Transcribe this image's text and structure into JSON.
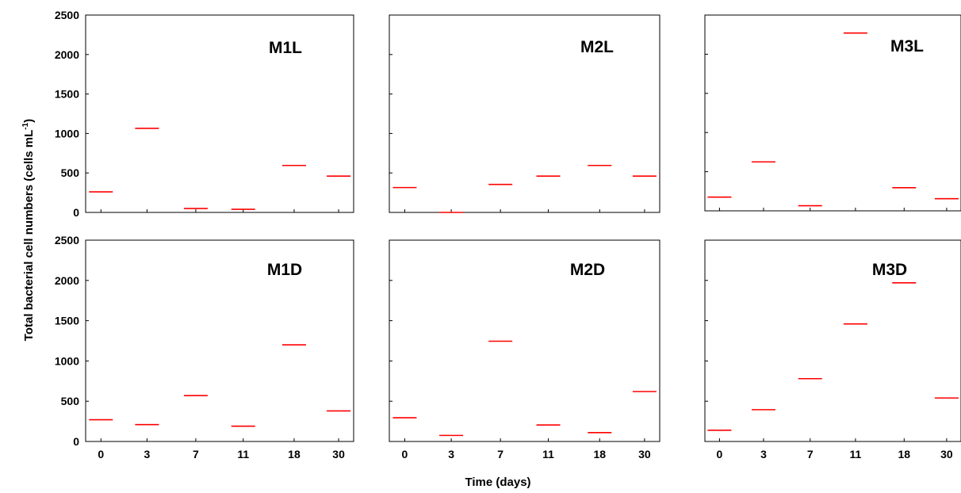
{
  "figure": {
    "ylabel": "Total bacterial cell numbers (cells mL",
    "ylabel_exp": "-1",
    "ylabel_close": ")",
    "xlabel": "Time (days)"
  },
  "colors": {
    "mark": "#ff0000",
    "axis": "#000000"
  },
  "chart_data": [
    {
      "type": "scatter",
      "title": "M1L",
      "categories": [
        "0",
        "3",
        "7",
        "11",
        "18",
        "30"
      ],
      "values": [
        260,
        1065,
        50,
        40,
        595,
        460
      ],
      "ylim": [
        0,
        2500
      ],
      "yticks": [
        "0",
        "500",
        "1000",
        "1500",
        "2000",
        "2500"
      ],
      "show_ytick_labels": true,
      "show_xtick_labels": false,
      "marker": "horizontal-line"
    },
    {
      "type": "scatter",
      "title": "M2L",
      "categories": [
        "0",
        "3",
        "7",
        "11",
        "18",
        "30"
      ],
      "values": [
        315,
        0,
        355,
        460,
        595,
        460
      ],
      "ylim": [
        0,
        2500
      ],
      "yticks": [
        "0",
        "500",
        "1000",
        "1500",
        "2000",
        "2500"
      ],
      "show_ytick_labels": false,
      "show_xtick_labels": false,
      "marker": "horizontal-line"
    },
    {
      "type": "scatter",
      "title": "M3L",
      "categories": [
        "0",
        "3",
        "7",
        "11",
        "18",
        "30"
      ],
      "values": [
        175,
        625,
        65,
        2270,
        295,
        155
      ],
      "ylim": [
        0,
        2500
      ],
      "yticks": [
        "0",
        "500",
        "1000",
        "1500",
        "2000",
        "2500"
      ],
      "show_ytick_labels": false,
      "show_xtick_labels": false,
      "marker": "horizontal-line"
    },
    {
      "type": "scatter",
      "title": "M1D",
      "categories": [
        "0",
        "3",
        "7",
        "11",
        "18",
        "30"
      ],
      "values": [
        270,
        210,
        570,
        190,
        1200,
        380
      ],
      "ylim": [
        0,
        2500
      ],
      "yticks": [
        "0",
        "500",
        "1000",
        "1500",
        "2000",
        "2500"
      ],
      "show_ytick_labels": true,
      "show_xtick_labels": true,
      "marker": "horizontal-line"
    },
    {
      "type": "scatter",
      "title": "M2D",
      "categories": [
        "0",
        "3",
        "7",
        "11",
        "18",
        "30"
      ],
      "values": [
        295,
        75,
        1245,
        205,
        110,
        620
      ],
      "ylim": [
        0,
        2500
      ],
      "yticks": [
        "0",
        "500",
        "1000",
        "1500",
        "2000",
        "2500"
      ],
      "show_ytick_labels": false,
      "show_xtick_labels": true,
      "marker": "horizontal-line"
    },
    {
      "type": "scatter",
      "title": "M3D",
      "categories": [
        "0",
        "3",
        "7",
        "11",
        "18",
        "30"
      ],
      "values": [
        140,
        395,
        780,
        1460,
        1970,
        540
      ],
      "ylim": [
        0,
        2500
      ],
      "yticks": [
        "0",
        "500",
        "1000",
        "1500",
        "2000",
        "2500"
      ],
      "show_ytick_labels": false,
      "show_xtick_labels": true,
      "marker": "horizontal-line"
    }
  ]
}
